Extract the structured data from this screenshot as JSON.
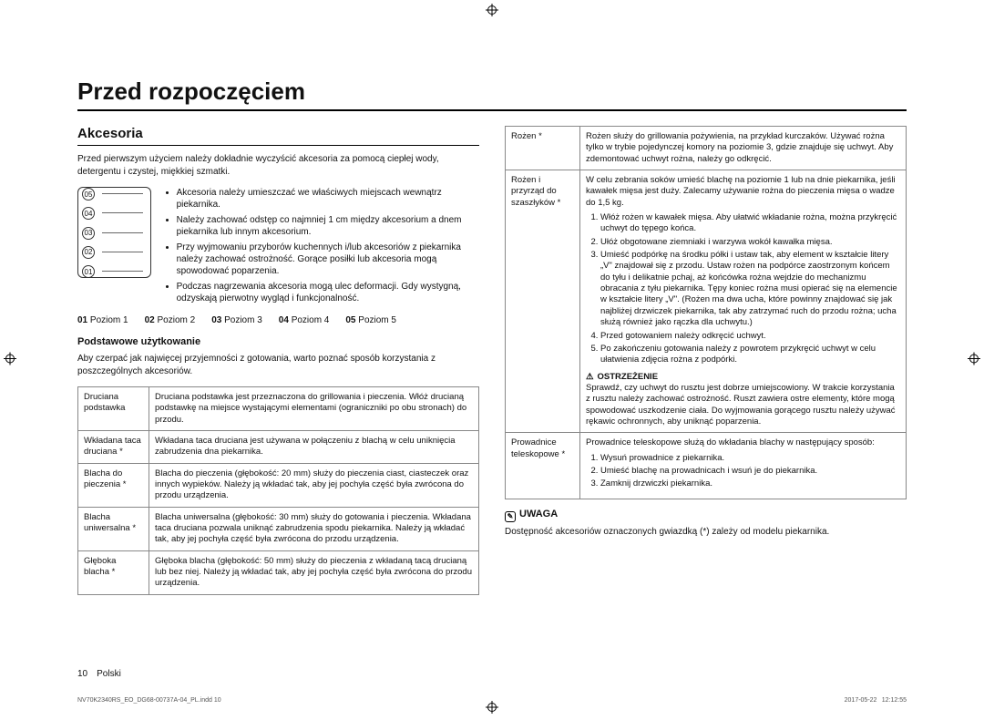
{
  "page_title": "Przed rozpoczęciem",
  "section": "Akcesoria",
  "intro": "Przed pierwszym użyciem należy dokładnie wyczyścić akcesoria za pomocą ciepłej wody, detergentu i czystej, miękkiej szmatki.",
  "diagram_levels": [
    "05",
    "04",
    "03",
    "02",
    "01"
  ],
  "bullets": [
    "Akcesoria należy umieszczać we właściwych miejscach wewnątrz piekarnika.",
    "Należy zachować odstęp co najmniej 1 cm między akcesorium a dnem piekarnika lub innym akcesorium.",
    "Przy wyjmowaniu przyborów kuchennych i/lub akcesoriów z piekarnika należy zachować ostrożność. Gorące posiłki lub akcesoria mogą spowodować poparzenia.",
    "Podczas nagrzewania akcesoria mogą ulec deformacji. Gdy wystygną, odzyskają pierwotny wygląd i funkcjonalność."
  ],
  "legend": [
    {
      "num": "01",
      "label": "Poziom 1"
    },
    {
      "num": "02",
      "label": "Poziom 2"
    },
    {
      "num": "03",
      "label": "Poziom 3"
    },
    {
      "num": "04",
      "label": "Poziom 4"
    },
    {
      "num": "05",
      "label": "Poziom 5"
    }
  ],
  "sub_heading": "Podstawowe użytkowanie",
  "sub_intro": "Aby czerpać jak najwięcej przyjemności z gotowania, warto poznać sposób korzystania z poszczególnych akcesoriów.",
  "table_left": [
    {
      "name": "Druciana podstawka",
      "desc": "Druciana podstawka jest przeznaczona do grillowania i pieczenia. Włóż drucianą podstawkę na miejsce wystającymi elementami (ograniczniki po obu stronach) do przodu."
    },
    {
      "name": "Wkładana taca druciana *",
      "desc": "Wkładana taca druciana jest używana w połączeniu z blachą w celu uniknięcia zabrudzenia dna piekarnika."
    },
    {
      "name": "Blacha do pieczenia *",
      "desc": "Blacha do pieczenia (głębokość: 20 mm) służy do pieczenia ciast, ciasteczek oraz innych wypieków. Należy ją wkładać tak, aby jej pochyła część była zwrócona do przodu urządzenia."
    },
    {
      "name": "Blacha uniwersalna *",
      "desc": "Blacha uniwersalna (głębokość: 30 mm) służy do gotowania i pieczenia. Wkładana taca druciana pozwala uniknąć zabrudzenia spodu piekarnika. Należy ją wkładać tak, aby jej pochyła część była zwrócona do przodu urządzenia."
    },
    {
      "name": "Głęboka blacha *",
      "desc": "Głęboka blacha (głębokość: 50 mm) służy do pieczenia z wkładaną tacą drucianą lub bez niej. Należy ją wkładać tak, aby jej pochyła część była zwrócona do przodu urządzenia."
    }
  ],
  "table_right": [
    {
      "name": "Rożen *",
      "desc": "Rożen służy do grillowania pożywienia, na przykład kurczaków. Używać rożna tylko w trybie pojedynczej komory na poziomie 3, gdzie znajduje się uchwyt. Aby zdemontować uchwyt rożna, należy go odkręcić."
    },
    {
      "name": "Rożen i przyrząd do szaszłyków *",
      "desc_pre": "W celu zebrania soków umieść blachę na poziomie 1 lub na dnie piekarnika, jeśli kawałek mięsa jest duży. Zalecamy używanie rożna do pieczenia mięsa o wadze do 1,5 kg.",
      "steps": [
        "Włóż rożen w kawałek mięsa. Aby ułatwić wkładanie rożna, można przykręcić uchwyt do tępego końca.",
        "Ułóż obgotowane ziemniaki i warzywa wokół kawałka mięsa.",
        "Umieść podpórkę na środku półki i ustaw tak, aby element w kształcie litery „V\" znajdował się z przodu. Ustaw rożen na podpórce zaostrzonym końcem do tyłu i delikatnie pchaj, aż końcówka rożna wejdzie do mechanizmu obracania z tyłu piekarnika. Tępy koniec rożna musi opierać się na elemencie w kształcie litery „V\". (Rożen ma dwa ucha, które powinny znajdować się jak najbliżej drzwiczek piekarnika, tak aby zatrzymać ruch do przodu rożna; ucha służą również jako rączka dla uchwytu.)",
        "Przed gotowaniem należy odkręcić uchwyt.",
        "Po zakończeniu gotowania należy z powrotem przykręcić uchwyt w celu ułatwienia zdjęcia rożna z podpórki."
      ],
      "warn_label": "OSTRZEŻENIE",
      "warn_text": "Sprawdź, czy uchwyt do rusztu jest dobrze umiejscowiony. W trakcie korzystania z rusztu należy zachować ostrożność. Ruszt zawiera ostre elementy, które mogą spowodować uszkodzenie ciała. Do wyjmowania gorącego rusztu należy używać rękawic ochronnych, aby uniknąć poparzenia."
    },
    {
      "name": "Prowadnice teleskopowe *",
      "desc_pre": "Prowadnice teleskopowe służą do wkładania blachy w następujący sposób:",
      "steps": [
        "Wysuń prowadnice z piekarnika.",
        "Umieść blachę na prowadnicach i wsuń je do piekarnika.",
        "Zamknij drzwiczki piekarnika."
      ]
    }
  ],
  "note_label": "UWAGA",
  "note_text": "Dostępność akcesoriów oznaczonych gwiazdką (*) zależy od modelu piekarnika.",
  "page_footer": "10 Polski",
  "file_footer": "NV70K2340RS_EO_DG68-00737A-04_PL.indd   10",
  "time_footer": "2017-05-22   12:12:55"
}
